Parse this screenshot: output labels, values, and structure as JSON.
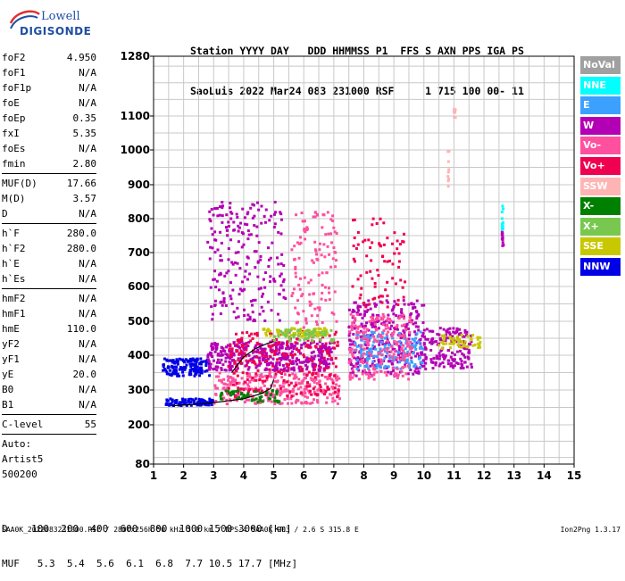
{
  "logo": {
    "line1": "Lowell",
    "line2": "DIGISONDE"
  },
  "header": {
    "row1": "Station YYYY DAY   DDD HHMMSS P1  FFS S AXN PPS IGA PS",
    "row2": "SaoLuis 2022 Mar24 083 231000 RSF     1 715 100 00- 11"
  },
  "params": {
    "group1": [
      {
        "label": "foF2",
        "value": "4.950"
      },
      {
        "label": "foF1",
        "value": "N/A"
      },
      {
        "label": "foF1p",
        "value": "N/A"
      },
      {
        "label": "foE",
        "value": "N/A"
      },
      {
        "label": "foEp",
        "value": "0.35"
      },
      {
        "label": "fxI",
        "value": "5.35"
      },
      {
        "label": "foEs",
        "value": "N/A"
      },
      {
        "label": "fmin",
        "value": "2.80"
      }
    ],
    "group2": [
      {
        "label": "MUF(D)",
        "value": "17.66"
      },
      {
        "label": "M(D)",
        "value": "3.57"
      },
      {
        "label": "D",
        "value": "N/A"
      }
    ],
    "group3": [
      {
        "label": "h`F",
        "value": "280.0"
      },
      {
        "label": "h`F2",
        "value": "280.0"
      },
      {
        "label": "h`E",
        "value": "N/A"
      },
      {
        "label": "h`Es",
        "value": "N/A"
      }
    ],
    "group4": [
      {
        "label": "hmF2",
        "value": "N/A"
      },
      {
        "label": "hmF1",
        "value": "N/A"
      },
      {
        "label": "hmE",
        "value": "110.0"
      },
      {
        "label": "yF2",
        "value": "N/A"
      },
      {
        "label": "yF1",
        "value": "N/A"
      },
      {
        "label": "yE",
        "value": "20.0"
      },
      {
        "label": "B0",
        "value": "N/A"
      },
      {
        "label": "B1",
        "value": "N/A"
      }
    ],
    "clevel": {
      "label": "C-level",
      "value": "55"
    },
    "auto": [
      "Auto:",
      "Artist5",
      "500200"
    ]
  },
  "legend": [
    {
      "label": "NoVal",
      "color": "#a0a0a0"
    },
    {
      "label": "NNE",
      "color": "#00ffff"
    },
    {
      "label": "E",
      "color": "#3ca0ff"
    },
    {
      "label": "W",
      "color": "#b400b4"
    },
    {
      "label": "Vo-",
      "color": "#ff50a0"
    },
    {
      "label": "Vo+",
      "color": "#f00050"
    },
    {
      "label": "SSW",
      "color": "#ffb4b4"
    },
    {
      "label": "X-",
      "color": "#008000"
    },
    {
      "label": "X+",
      "color": "#78c850"
    },
    {
      "label": "SSE",
      "color": "#c8c800"
    },
    {
      "label": "NNW",
      "color": "#0000e6"
    }
  ],
  "muf_table": {
    "d_row": "D    100  200  400  600  800  1000 1500 3000 [km]",
    "muf_row": "MUF   5.3  5.4  5.6  6.1  6.8  7.7 10.5 17.7 [MHz]"
  },
  "footer": "SAA0K_2022083231000.RSF / 280fx256h 50 kHz 5.0 km / DPS-4 SAA0K 903 / 2.6 S 315.8 E",
  "version": "Ion2Png 1.3.17",
  "chart_data": {
    "type": "scatter",
    "xlabel": "",
    "ylabel": "",
    "x_range": [
      1,
      15
    ],
    "y_range": [
      80,
      1280
    ],
    "x_ticks": [
      "1",
      "2",
      "3",
      "4",
      "5",
      "6",
      "7",
      "8",
      "9",
      "10",
      "11",
      "12",
      "13",
      "14",
      "15"
    ],
    "y_ticks": [
      "80",
      "200",
      "300",
      "400",
      "500",
      "600",
      "700",
      "800",
      "900",
      "1000",
      "1100",
      "1280"
    ],
    "y_tick_values": [
      80,
      200,
      300,
      400,
      500,
      600,
      700,
      800,
      900,
      1000,
      1100,
      1280
    ],
    "grid": true,
    "traces": [
      {
        "name": "o-trace",
        "color": "#000000",
        "x": [
          1.6,
          2.2,
          2.8,
          3.4,
          4.0,
          4.6,
          4.9,
          5.0
        ],
        "y": [
          255,
          258,
          262,
          268,
          275,
          290,
          305,
          330
        ]
      },
      {
        "name": "F-layer",
        "color": "#000000",
        "x": [
          3.6,
          4.0,
          4.4,
          4.8,
          5.0
        ],
        "y": [
          350,
          395,
          420,
          435,
          440
        ]
      }
    ],
    "clusters": [
      {
        "color": "#0000e6",
        "x": [
          1.3,
          2.9
        ],
        "y": [
          340,
          390
        ],
        "n": 150
      },
      {
        "color": "#0000e6",
        "x": [
          1.4,
          3.0
        ],
        "y": [
          255,
          275
        ],
        "n": 90
      },
      {
        "color": "#b400b4",
        "x": [
          2.8,
          7.0
        ],
        "y": [
          355,
          440
        ],
        "n": 420
      },
      {
        "color": "#ff50a0",
        "x": [
          3.0,
          7.2
        ],
        "y": [
          260,
          350
        ],
        "n": 300
      },
      {
        "color": "#f00050",
        "x": [
          3.5,
          7.2
        ],
        "y": [
          280,
          470
        ],
        "n": 250
      },
      {
        "color": "#c8c800",
        "x": [
          4.6,
          6.8
        ],
        "y": [
          455,
          480
        ],
        "n": 90
      },
      {
        "color": "#008000",
        "x": [
          3.2,
          5.2
        ],
        "y": [
          265,
          300
        ],
        "n": 60
      },
      {
        "color": "#78c850",
        "x": [
          5.0,
          7.0
        ],
        "y": [
          440,
          475
        ],
        "n": 60
      },
      {
        "color": "#b400b4",
        "x": [
          2.8,
          5.4
        ],
        "y": [
          500,
          850
        ],
        "n": 220
      },
      {
        "color": "#ff50a0",
        "x": [
          5.6,
          7.1
        ],
        "y": [
          480,
          820
        ],
        "n": 120
      },
      {
        "color": "#b400b4",
        "x": [
          7.5,
          10.0
        ],
        "y": [
          340,
          560
        ],
        "n": 330
      },
      {
        "color": "#3ca0ff",
        "x": [
          7.7,
          10.0
        ],
        "y": [
          360,
          470
        ],
        "n": 160
      },
      {
        "color": "#ff50a0",
        "x": [
          7.5,
          9.6
        ],
        "y": [
          330,
          520
        ],
        "n": 200
      },
      {
        "color": "#f00050",
        "x": [
          7.6,
          9.4
        ],
        "y": [
          540,
          800
        ],
        "n": 80
      },
      {
        "color": "#b400b4",
        "x": [
          10.0,
          11.6
        ],
        "y": [
          360,
          480
        ],
        "n": 160
      },
      {
        "color": "#c8c800",
        "x": [
          10.5,
          11.9
        ],
        "y": [
          420,
          460
        ],
        "n": 50
      },
      {
        "color": "#b400b4",
        "x": [
          12.6,
          12.65
        ],
        "y": [
          720,
          760
        ],
        "n": 12
      },
      {
        "color": "#00ffff",
        "x": [
          12.6,
          12.65
        ],
        "y": [
          760,
          840
        ],
        "n": 12
      },
      {
        "color": "#ffb4b4",
        "x": [
          10.8,
          10.85
        ],
        "y": [
          890,
          1000
        ],
        "n": 10
      },
      {
        "color": "#ffb4b4",
        "x": [
          11.0,
          11.05
        ],
        "y": [
          1090,
          1130
        ],
        "n": 8
      }
    ]
  }
}
